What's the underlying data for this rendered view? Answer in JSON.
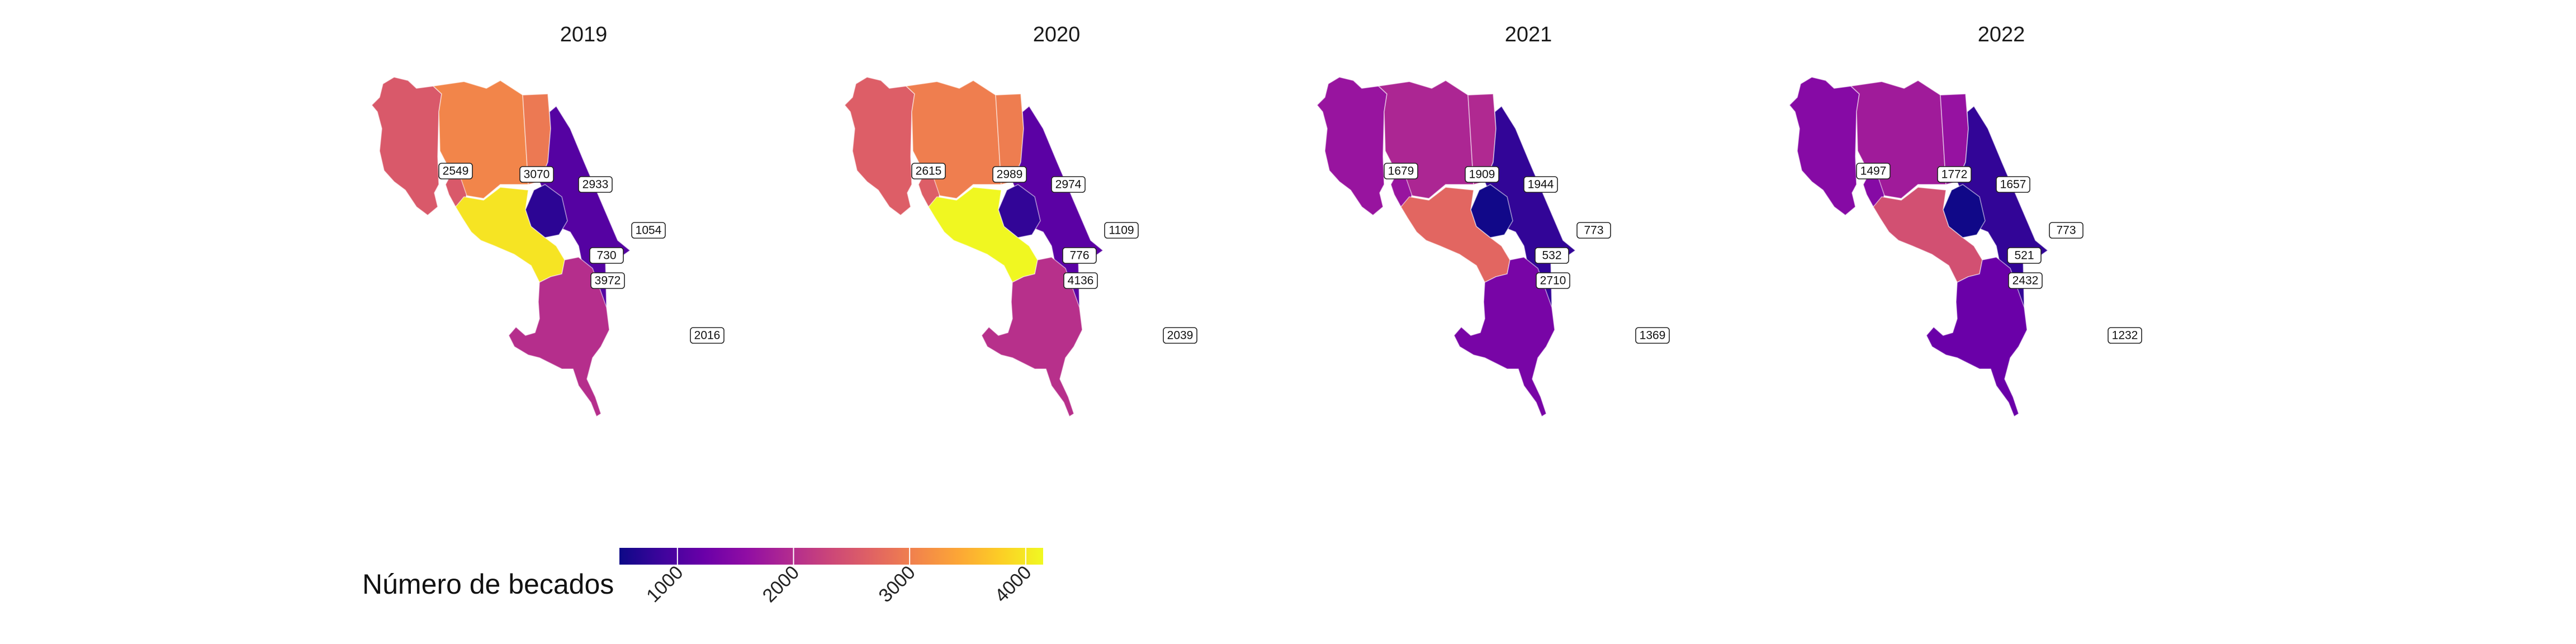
{
  "map": {
    "panels": [
      {
        "title": "2019",
        "values": {
          "chorotega": 2549,
          "huetar_norte": 3070,
          "huetar_norte_b": 2933,
          "huetar_caribe": 1054,
          "central_este": 730,
          "central": 3972,
          "brunca": 2016
        }
      },
      {
        "title": "2020",
        "values": {
          "chorotega": 2615,
          "huetar_norte": 2989,
          "huetar_norte_b": 2974,
          "huetar_caribe": 1109,
          "central_este": 776,
          "central": 4136,
          "brunca": 2039
        }
      },
      {
        "title": "2021",
        "values": {
          "chorotega": 1679,
          "huetar_norte": 1909,
          "huetar_norte_b": 1944,
          "huetar_caribe": 773,
          "central_este": 532,
          "central": 2710,
          "brunca": 1369
        }
      },
      {
        "title": "2022",
        "values": {
          "chorotega": 1497,
          "huetar_norte": 1772,
          "huetar_norte_b": 1657,
          "huetar_caribe": 773,
          "central_este": 521,
          "central": 2432,
          "brunca": 1232
        }
      }
    ],
    "legend": {
      "title": "Número de becados",
      "min": 500,
      "max": 4150,
      "ticks": [
        {
          "value": 1000,
          "label": "1000"
        },
        {
          "value": 2000,
          "label": "2000"
        },
        {
          "value": 3000,
          "label": "3000"
        },
        {
          "value": 4000,
          "label": "4000"
        }
      ]
    },
    "palette": [
      "#0d0887",
      "#3e049c",
      "#6a00a8",
      "#900da4",
      "#b12a90",
      "#cc4778",
      "#e16462",
      "#f2844b",
      "#fca636",
      "#fcce25",
      "#f0f921"
    ]
  }
}
